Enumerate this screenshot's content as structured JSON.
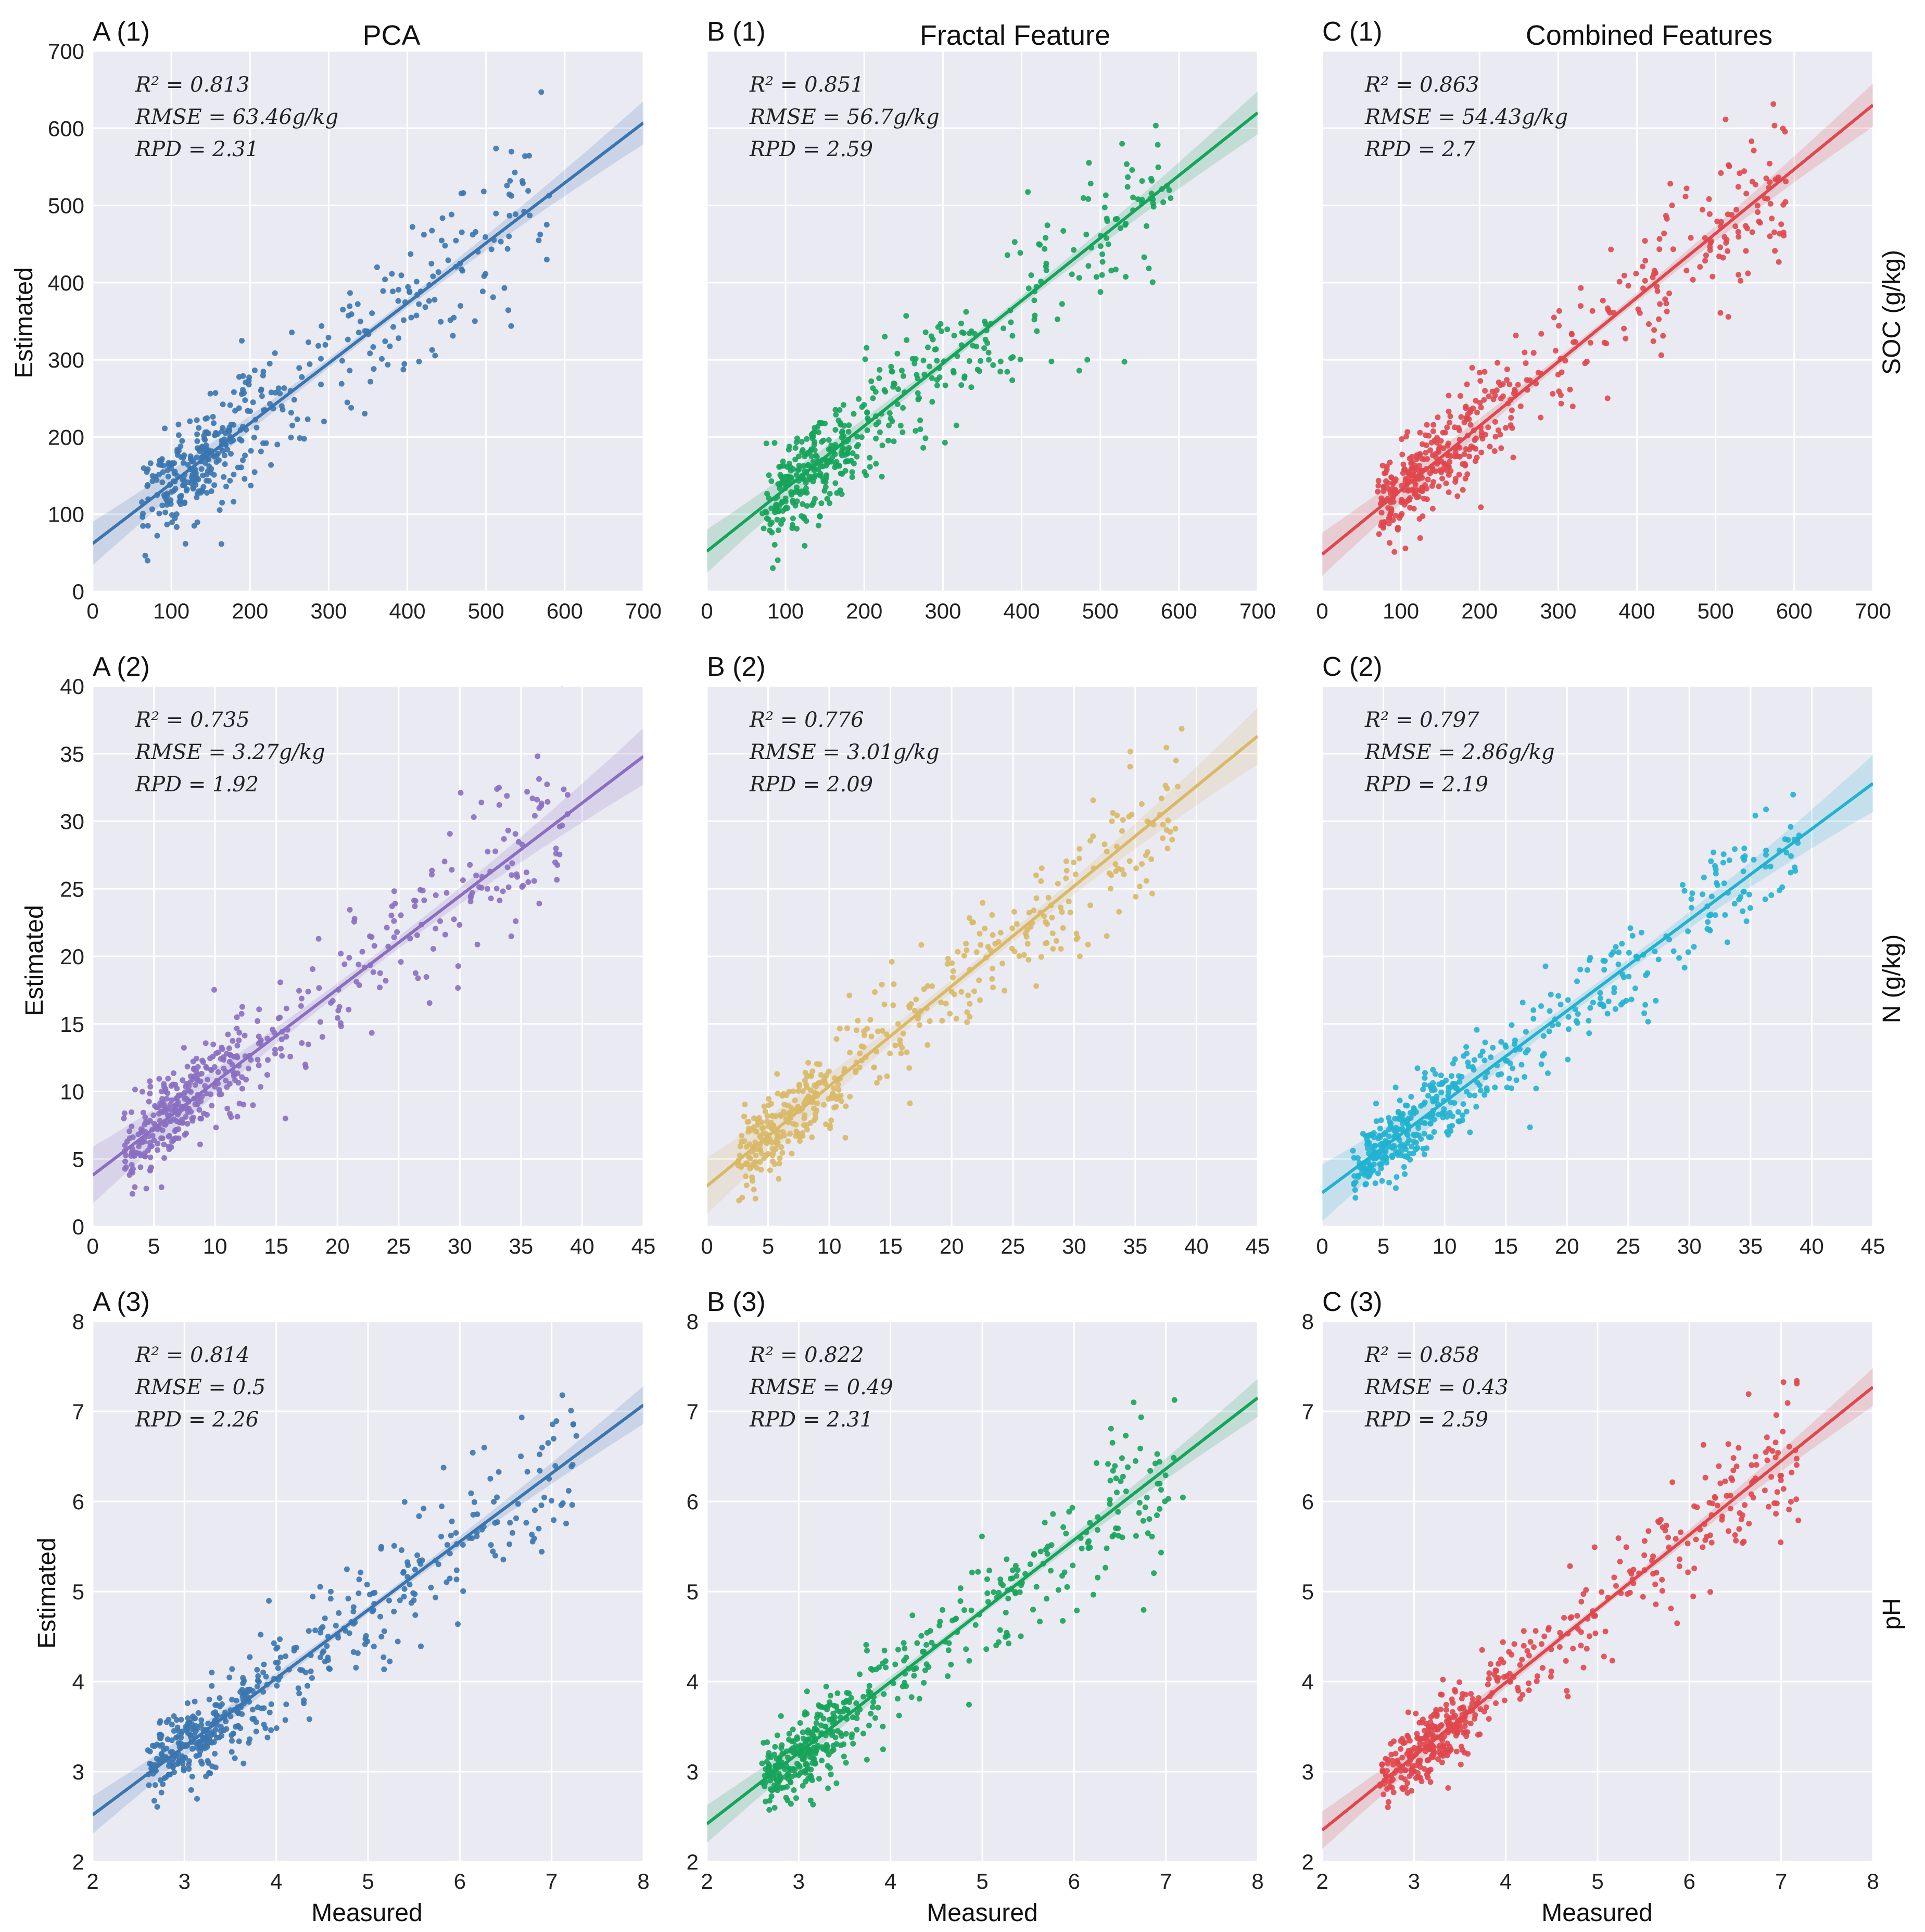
{
  "figure": {
    "column_titles": [
      "PCA",
      "Fractal Feature",
      "Combined Features"
    ],
    "row_labels": [
      "SOC (g/kg)",
      "N (g/kg)",
      "pH"
    ],
    "xlabel": "Measured",
    "ylabel": "Estimated"
  },
  "chart_data": [
    {
      "type": "scatter",
      "id": "A (1)",
      "row": 0,
      "col": 0,
      "color": "#3b75af",
      "xlim": [
        0,
        700
      ],
      "ylim": [
        0,
        700
      ],
      "xticks": [
        0,
        100,
        200,
        300,
        400,
        500,
        600,
        700
      ],
      "yticks": [
        0,
        100,
        200,
        300,
        400,
        500,
        600,
        700
      ],
      "fit": {
        "x": [
          0,
          700
        ],
        "y": [
          62,
          607
        ]
      },
      "ci_width": 16,
      "stats": [
        "R² = 0.813",
        "RMSE = 63.46g/kg",
        "RPD = 2.31"
      ],
      "spread": {
        "x_min": 60,
        "x_max": 580,
        "scale": 55,
        "n": 430,
        "dense_center": 130
      }
    },
    {
      "type": "scatter",
      "id": "B (1)",
      "row": 0,
      "col": 1,
      "color": "#16a35a",
      "xlim": [
        0,
        700
      ],
      "ylim": [
        0,
        700
      ],
      "xticks": [
        0,
        100,
        200,
        300,
        400,
        500,
        600,
        700
      ],
      "yticks": [
        0,
        100,
        200,
        300,
        400,
        500,
        600,
        700
      ],
      "fit": {
        "x": [
          0,
          700
        ],
        "y": [
          52,
          620
        ]
      },
      "ci_width": 16,
      "stats": [
        "R² = 0.851",
        "RMSE = 56.7g/kg",
        "RPD = 2.59"
      ],
      "spread": {
        "x_min": 70,
        "x_max": 590,
        "scale": 50,
        "n": 480,
        "dense_center": 120
      }
    },
    {
      "type": "scatter",
      "id": "C (1)",
      "row": 0,
      "col": 2,
      "color": "#e0474c",
      "xlim": [
        0,
        700
      ],
      "ylim": [
        0,
        700
      ],
      "xticks": [
        0,
        100,
        200,
        300,
        400,
        500,
        600,
        700
      ],
      "yticks": [
        0,
        100,
        200,
        300,
        400,
        500,
        600,
        700
      ],
      "fit": {
        "x": [
          0,
          700
        ],
        "y": [
          48,
          630
        ]
      },
      "ci_width": 16,
      "stats": [
        "R² = 0.863",
        "RMSE = 54.43g/kg",
        "RPD = 2.7"
      ],
      "spread": {
        "x_min": 70,
        "x_max": 590,
        "scale": 48,
        "n": 480,
        "dense_center": 120
      }
    },
    {
      "type": "scatter",
      "id": "A (2)",
      "row": 1,
      "col": 0,
      "color": "#8a6fc0",
      "xlim": [
        0,
        45
      ],
      "ylim": [
        0,
        40
      ],
      "xticks": [
        0,
        5,
        10,
        15,
        20,
        25,
        30,
        35,
        40,
        45
      ],
      "yticks": [
        0,
        5,
        10,
        15,
        20,
        25,
        30,
        35,
        40
      ],
      "fit": {
        "x": [
          0,
          45
        ],
        "y": [
          3.8,
          34.8
        ]
      },
      "ci_width": 1.2,
      "stats": [
        "R² = 0.735",
        "RMSE = 3.27g/kg",
        "RPD = 1.92"
      ],
      "spread": {
        "x_min": 2.5,
        "x_max": 39,
        "scale": 2.6,
        "n": 470,
        "dense_center": 6
      }
    },
    {
      "type": "scatter",
      "id": "B (2)",
      "row": 1,
      "col": 1,
      "color": "#d9b968",
      "xlim": [
        0,
        45
      ],
      "ylim": [
        0,
        40
      ],
      "xticks": [
        0,
        5,
        10,
        15,
        20,
        25,
        30,
        35,
        40,
        45
      ],
      "yticks": [
        0,
        5,
        10,
        15,
        20,
        25,
        30,
        35,
        40
      ],
      "fit": {
        "x": [
          0,
          45
        ],
        "y": [
          3.0,
          36.3
        ]
      },
      "ci_width": 1.2,
      "stats": [
        "R² = 0.776",
        "RMSE = 3.01g/kg",
        "RPD = 2.09"
      ],
      "spread": {
        "x_min": 2.5,
        "x_max": 39,
        "scale": 2.4,
        "n": 470,
        "dense_center": 6
      }
    },
    {
      "type": "scatter",
      "id": "C (2)",
      "row": 1,
      "col": 2,
      "color": "#22b2d0",
      "xlim": [
        0,
        45
      ],
      "ylim": [
        0,
        40
      ],
      "xticks": [
        0,
        5,
        10,
        15,
        20,
        25,
        30,
        35,
        40,
        45
      ],
      "yticks": [
        0,
        5,
        10,
        15,
        20,
        25,
        30,
        35,
        40
      ],
      "fit": {
        "x": [
          0,
          45
        ],
        "y": [
          2.5,
          32.8
        ]
      },
      "ci_width": 1.2,
      "stats": [
        "R² = 0.797",
        "RMSE = 2.86g/kg",
        "RPD = 2.19"
      ],
      "spread": {
        "x_min": 2.5,
        "x_max": 39,
        "scale": 2.2,
        "n": 490,
        "dense_center": 6
      }
    },
    {
      "type": "scatter",
      "id": "A (3)",
      "row": 2,
      "col": 0,
      "color": "#3b75af",
      "xlim": [
        2,
        8
      ],
      "ylim": [
        2,
        8
      ],
      "xticks": [
        2,
        3,
        4,
        5,
        6,
        7,
        8
      ],
      "yticks": [
        2,
        3,
        4,
        5,
        6,
        7,
        8
      ],
      "fit": {
        "x": [
          2,
          8
        ],
        "y": [
          2.52,
          7.07
        ]
      },
      "ci_width": 0.12,
      "stats": [
        "R² = 0.814",
        "RMSE = 0.5",
        "RPD = 2.26"
      ],
      "spread": {
        "x_min": 2.6,
        "x_max": 7.3,
        "scale": 0.38,
        "n": 480,
        "dense_center": 3.1
      }
    },
    {
      "type": "scatter",
      "id": "B (3)",
      "row": 2,
      "col": 1,
      "color": "#16a35a",
      "xlim": [
        2,
        8
      ],
      "ylim": [
        2,
        8
      ],
      "xticks": [
        2,
        3,
        4,
        5,
        6,
        7,
        8
      ],
      "yticks": [
        2,
        3,
        4,
        5,
        6,
        7,
        8
      ],
      "fit": {
        "x": [
          2,
          8
        ],
        "y": [
          2.42,
          7.15
        ]
      },
      "ci_width": 0.12,
      "stats": [
        "R² = 0.822",
        "RMSE = 0.49",
        "RPD = 2.31"
      ],
      "spread": {
        "x_min": 2.6,
        "x_max": 7.2,
        "scale": 0.36,
        "n": 480,
        "dense_center": 3.0
      }
    },
    {
      "type": "scatter",
      "id": "C (3)",
      "row": 2,
      "col": 2,
      "color": "#e0474c",
      "xlim": [
        2,
        8
      ],
      "ylim": [
        2,
        8
      ],
      "xticks": [
        2,
        3,
        4,
        5,
        6,
        7,
        8
      ],
      "yticks": [
        2,
        3,
        4,
        5,
        6,
        7,
        8
      ],
      "fit": {
        "x": [
          2,
          8
        ],
        "y": [
          2.35,
          7.27
        ]
      },
      "ci_width": 0.12,
      "stats": [
        "R² = 0.858",
        "RMSE = 0.43",
        "RPD = 2.59"
      ],
      "spread": {
        "x_min": 2.6,
        "x_max": 7.2,
        "scale": 0.32,
        "n": 490,
        "dense_center": 3.1
      }
    }
  ]
}
